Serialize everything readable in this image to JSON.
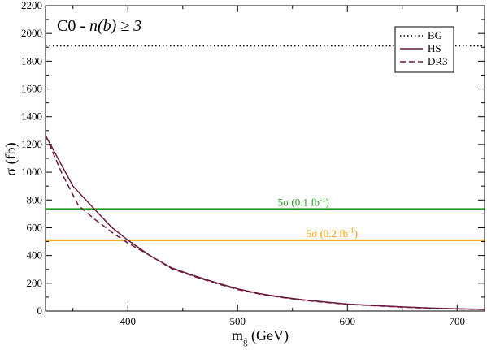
{
  "chart_data": {
    "type": "line",
    "title_main": "C0 - ",
    "title_italic": "n(b) ≥ 3",
    "xlabel_main": "m",
    "xlabel_sub": "g̃",
    "xlabel_unit": " (GeV)",
    "ylabel_sym": "σ",
    "ylabel_unit": " (fb)",
    "xlim": [
      325,
      725
    ],
    "ylim": [
      0,
      2200
    ],
    "x_ticks": [
      400,
      500,
      600,
      700
    ],
    "y_ticks": [
      0,
      200,
      400,
      600,
      800,
      1000,
      1200,
      1400,
      1600,
      1800,
      2000,
      2200
    ],
    "legend_position": "top-right",
    "series": [
      {
        "name": "BG",
        "style": "dotted",
        "color": "#000000",
        "x": [
          325,
          725
        ],
        "y": [
          1910,
          1910
        ]
      },
      {
        "name": "HS",
        "style": "solid",
        "color": "#6b1a3e",
        "x": [
          325,
          350,
          370,
          385,
          400,
          420,
          440,
          460,
          480,
          500,
          520,
          540,
          560,
          580,
          600,
          625,
          650,
          675,
          700,
          725
        ],
        "y": [
          1265,
          900,
          730,
          605,
          510,
          400,
          310,
          255,
          205,
          160,
          125,
          100,
          80,
          65,
          50,
          40,
          30,
          22,
          16,
          12
        ]
      },
      {
        "name": "DR3",
        "style": "dashed",
        "color": "#6b1a3e",
        "x": [
          325,
          340,
          355,
          370,
          385,
          400,
          420,
          440,
          460,
          480,
          500,
          520,
          540,
          560,
          580,
          600,
          625,
          650,
          675,
          700,
          725
        ],
        "y": [
          1265,
          990,
          760,
          660,
          570,
          490,
          400,
          305,
          250,
          200,
          155,
          122,
          98,
          78,
          62,
          48,
          38,
          28,
          20,
          15,
          11
        ]
      }
    ],
    "reference_lines": [
      {
        "label_pre": "5σ (0.1 fb",
        "label_sup": "-1",
        "label_post": ")",
        "y": 735,
        "color": "#1e9e1e",
        "label_x": 560
      },
      {
        "label_pre": "5σ (0.2 fb",
        "label_sup": "-1",
        "label_post": ")",
        "y": 510,
        "color": "#f5a000",
        "label_x": 586
      }
    ]
  }
}
